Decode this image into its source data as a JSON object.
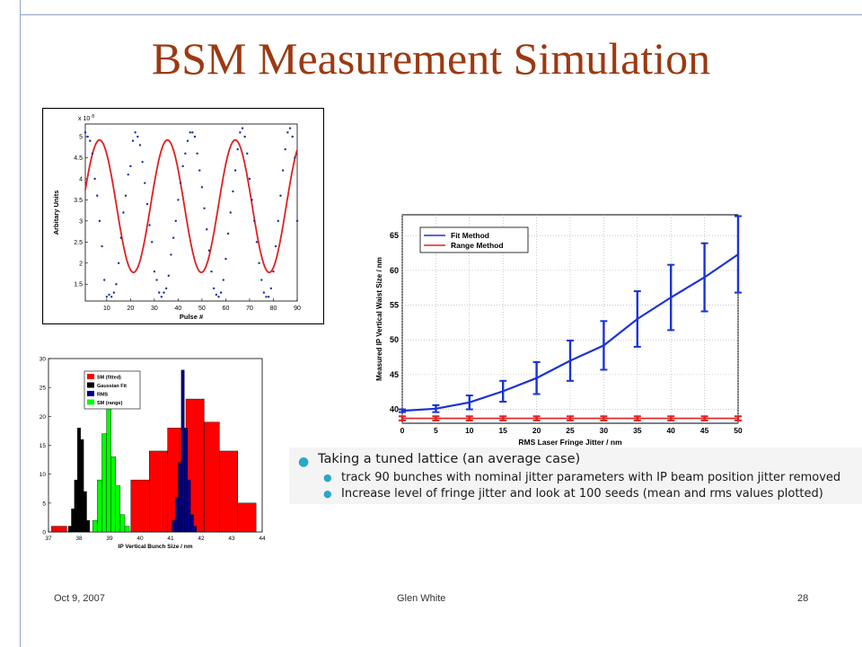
{
  "slide": {
    "title": "BSM Measurement Simulation",
    "footer_date": "Oct 9, 2007",
    "footer_author": "Glen White",
    "footer_page": "28"
  },
  "bullets": {
    "main": "Taking a tuned lattice (an average case)",
    "sub1": "track 90 bunches with nominal jitter parameters with IP beam position jitter removed",
    "sub2": "Increase level of fringe jitter and look at 100 seeds (mean and rms values plotted)"
  },
  "chart_data": [
    {
      "type": "scatter",
      "title": "",
      "xlabel": "Pulse #",
      "ylabel": "Arbitary Units",
      "y_multiplier_label": "x 10",
      "y_multiplier_exp": "8",
      "xlim": [
        1,
        90
      ],
      "ylim": [
        1.1,
        5.3
      ],
      "xticks": [
        10,
        20,
        30,
        40,
        50,
        60,
        70,
        80,
        90
      ],
      "yticks": [
        1.5,
        2,
        2.5,
        3,
        3.5,
        4,
        4.5,
        5
      ],
      "ytick_labels": [
        "1.5",
        "2",
        "2.5",
        "3",
        "3.5",
        "4",
        "4.5",
        "5"
      ],
      "fit_curve": {
        "offset": 3.35,
        "amplitude": 1.57,
        "period": 28.5,
        "phase_x": 7,
        "color": "#e02020"
      },
      "points_color": "#1a2fa0",
      "points": [
        [
          1,
          5.1
        ],
        [
          2,
          5.0
        ],
        [
          3,
          4.9
        ],
        [
          4,
          4.6
        ],
        [
          5,
          4.0
        ],
        [
          6,
          3.6
        ],
        [
          7,
          3.0
        ],
        [
          8,
          2.4
        ],
        [
          9,
          1.6
        ],
        [
          10,
          1.2
        ],
        [
          11,
          1.25
        ],
        [
          12,
          1.2
        ],
        [
          13,
          1.3
        ],
        [
          14,
          1.5
        ],
        [
          15,
          2.0
        ],
        [
          16,
          2.6
        ],
        [
          17,
          3.2
        ],
        [
          18,
          3.6
        ],
        [
          19,
          4.1
        ],
        [
          20,
          4.3
        ],
        [
          21,
          4.9
        ],
        [
          22,
          5.1
        ],
        [
          23,
          5.0
        ],
        [
          24,
          4.8
        ],
        [
          25,
          4.4
        ],
        [
          26,
          3.9
        ],
        [
          27,
          3.4
        ],
        [
          28,
          2.9
        ],
        [
          29,
          2.5
        ],
        [
          30,
          1.8
        ],
        [
          31,
          1.6
        ],
        [
          32,
          1.3
        ],
        [
          33,
          1.2
        ],
        [
          34,
          1.3
        ],
        [
          35,
          1.4
        ],
        [
          36,
          1.7
        ],
        [
          37,
          2.2
        ],
        [
          38,
          2.6
        ],
        [
          39,
          3.0
        ],
        [
          40,
          3.5
        ],
        [
          41,
          3.9
        ],
        [
          42,
          4.3
        ],
        [
          43,
          4.6
        ],
        [
          44,
          4.9
        ],
        [
          45,
          5.1
        ],
        [
          46,
          5.1
        ],
        [
          47,
          5.0
        ],
        [
          48,
          4.6
        ],
        [
          49,
          4.2
        ],
        [
          50,
          3.8
        ],
        [
          51,
          3.3
        ],
        [
          52,
          2.8
        ],
        [
          53,
          2.3
        ],
        [
          54,
          1.8
        ],
        [
          55,
          1.4
        ],
        [
          56,
          1.25
        ],
        [
          57,
          1.2
        ],
        [
          58,
          1.3
        ],
        [
          59,
          1.6
        ],
        [
          60,
          2.1
        ],
        [
          61,
          2.7
        ],
        [
          62,
          3.2
        ],
        [
          63,
          3.7
        ],
        [
          64,
          4.2
        ],
        [
          65,
          4.7
        ],
        [
          66,
          5.1
        ],
        [
          67,
          5.2
        ],
        [
          68,
          5.0
        ],
        [
          69,
          4.6
        ],
        [
          70,
          4.0
        ],
        [
          71,
          3.5
        ],
        [
          72,
          3.0
        ],
        [
          73,
          2.5
        ],
        [
          74,
          2.0
        ],
        [
          75,
          1.6
        ],
        [
          76,
          1.3
        ],
        [
          77,
          1.2
        ],
        [
          78,
          1.2
        ],
        [
          79,
          1.4
        ],
        [
          80,
          1.8
        ],
        [
          81,
          2.4
        ],
        [
          82,
          3.0
        ],
        [
          83,
          3.6
        ],
        [
          84,
          4.2
        ],
        [
          85,
          4.7
        ],
        [
          86,
          5.1
        ],
        [
          87,
          5.2
        ],
        [
          88,
          5.0
        ],
        [
          89,
          4.5
        ],
        [
          90,
          3.0
        ]
      ]
    },
    {
      "type": "line",
      "title": "",
      "xlabel": "RMS Laser Fringe Jitter / nm",
      "ylabel": "Measured IP Vertical Waist Size / nm",
      "xlim": [
        0,
        50
      ],
      "ylim": [
        38,
        68
      ],
      "xticks": [
        0,
        5,
        10,
        15,
        20,
        25,
        30,
        35,
        40,
        45,
        50
      ],
      "yticks": [
        40,
        45,
        50,
        55,
        60,
        65
      ],
      "legend_position": "top-left",
      "series": [
        {
          "name": "Fit Method",
          "color": "#1a33d6",
          "x": [
            0,
            5,
            10,
            15,
            20,
            25,
            30,
            35,
            40,
            45,
            50
          ],
          "y": [
            39.8,
            40.1,
            41.0,
            42.6,
            44.5,
            47.0,
            49.2,
            53.0,
            56.1,
            59.0,
            62.3
          ],
          "err": [
            0.2,
            0.5,
            1.0,
            1.5,
            2.3,
            2.9,
            3.5,
            4.0,
            4.7,
            4.9,
            5.5
          ]
        },
        {
          "name": "Range Method",
          "color": "#e02020",
          "x": [
            0,
            5,
            10,
            15,
            20,
            25,
            30,
            35,
            40,
            45,
            50
          ],
          "y": [
            38.7,
            38.7,
            38.7,
            38.7,
            38.7,
            38.7,
            38.7,
            38.7,
            38.7,
            38.7,
            38.7
          ],
          "err": [
            0.3,
            0.3,
            0.3,
            0.3,
            0.3,
            0.3,
            0.3,
            0.3,
            0.3,
            0.3,
            0.3
          ]
        }
      ]
    },
    {
      "type": "bar",
      "title": "",
      "xlabel": "IP Vertical Bunch Size / nm",
      "ylabel": "",
      "xlim": [
        37,
        44
      ],
      "ylim": [
        0,
        30
      ],
      "xticks": [
        37,
        38,
        39,
        40,
        41,
        42,
        43,
        44
      ],
      "yticks": [
        0,
        5,
        10,
        15,
        20,
        25,
        30
      ],
      "legend_position": "top-left",
      "series": [
        {
          "name": "SM (fitted)",
          "color": "#ff0000",
          "bins": [
            [
              37.1,
              37.6,
              1
            ],
            [
              39.7,
              40.3,
              9
            ],
            [
              40.3,
              40.9,
              14
            ],
            [
              40.9,
              41.5,
              18
            ],
            [
              41.5,
              42.1,
              23
            ],
            [
              42.1,
              42.6,
              19
            ],
            [
              42.6,
              43.2,
              14
            ],
            [
              43.2,
              43.8,
              5
            ]
          ]
        },
        {
          "name": "Gaussian Fit",
          "color": "#000000",
          "bins": [
            [
              37.65,
              37.75,
              1
            ],
            [
              37.75,
              37.85,
              4
            ],
            [
              37.85,
              37.95,
              9
            ],
            [
              37.95,
              38.05,
              18
            ],
            [
              38.05,
              38.15,
              16
            ],
            [
              38.15,
              38.25,
              7
            ],
            [
              38.25,
              38.35,
              2
            ]
          ]
        },
        {
          "name": "RMS",
          "color": "#00008b",
          "bins": [
            [
              41.05,
              41.15,
              2
            ],
            [
              41.15,
              41.25,
              6
            ],
            [
              41.25,
              41.35,
              12
            ],
            [
              41.35,
              41.45,
              28
            ],
            [
              41.45,
              41.55,
              18
            ],
            [
              41.55,
              41.65,
              9
            ],
            [
              41.65,
              41.75,
              3
            ],
            [
              41.75,
              41.85,
              1
            ]
          ]
        },
        {
          "name": "SM (range)",
          "color": "#00ff00",
          "bins": [
            [
              38.45,
              38.6,
              2
            ],
            [
              38.6,
              38.75,
              9
            ],
            [
              38.75,
              38.9,
              17
            ],
            [
              38.9,
              39.05,
              22
            ],
            [
              39.05,
              39.2,
              13
            ],
            [
              39.2,
              39.35,
              8
            ],
            [
              39.35,
              39.5,
              3
            ],
            [
              39.5,
              39.65,
              1
            ]
          ]
        }
      ]
    }
  ]
}
